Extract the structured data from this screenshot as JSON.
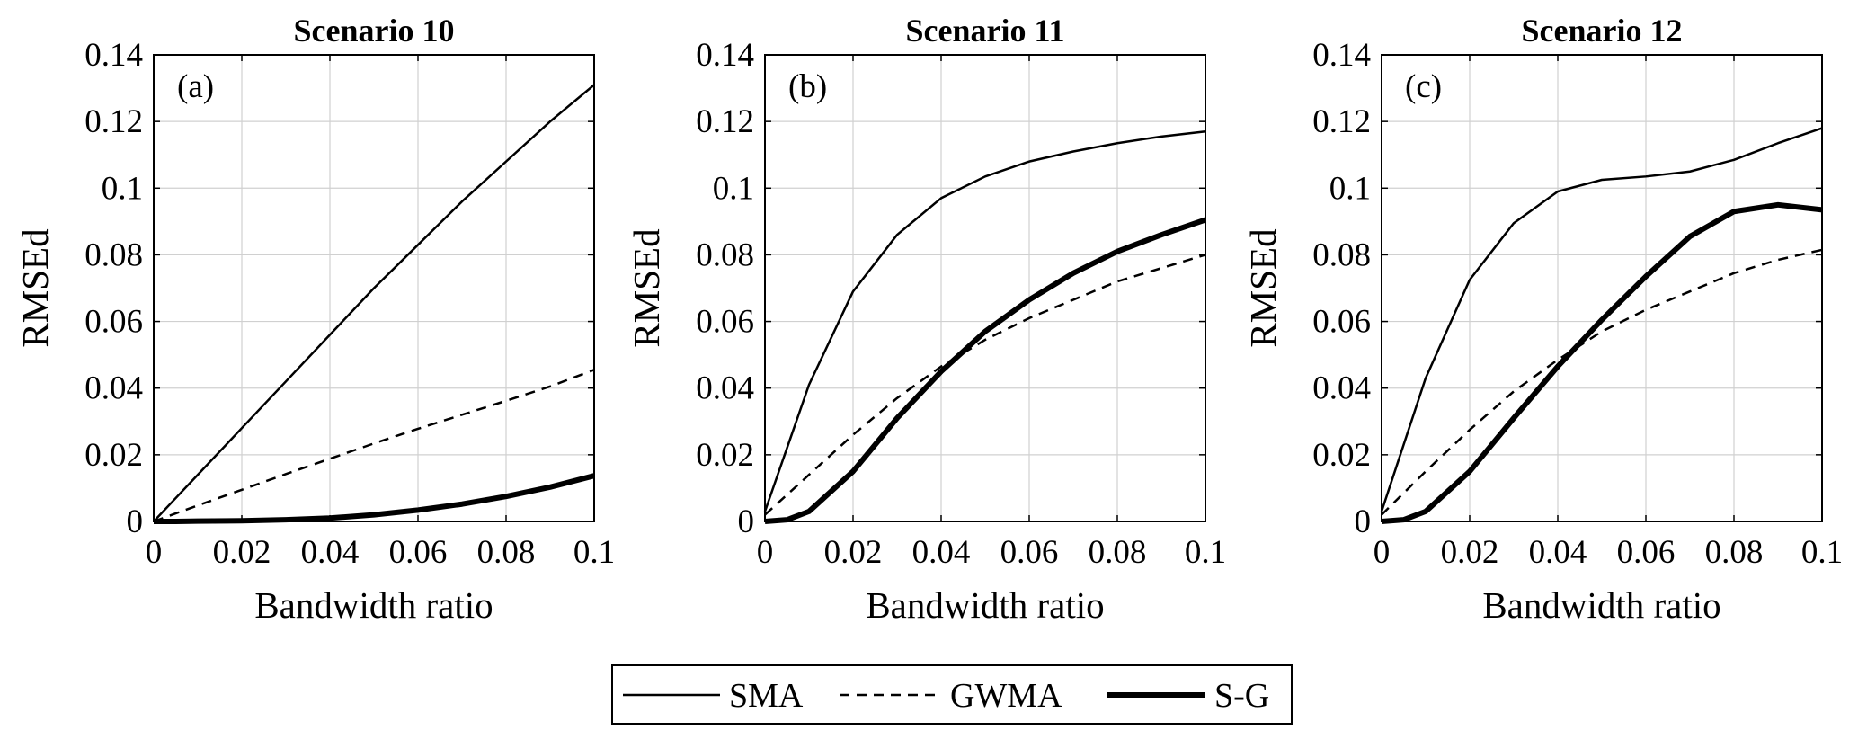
{
  "chart_data": [
    {
      "type": "line",
      "title": "Scenario 10",
      "panel_label": "(a)",
      "xlabel": "Bandwidth ratio",
      "ylabel": "RMSEd",
      "xlim": [
        0,
        0.1
      ],
      "ylim": [
        0,
        0.14
      ],
      "xticks": [
        "0",
        "0.02",
        "0.04",
        "0.06",
        "0.08",
        "0.1"
      ],
      "yticks": [
        "0",
        "0.02",
        "0.04",
        "0.06",
        "0.08",
        "0.1",
        "0.12",
        "0.14"
      ],
      "grid": true,
      "x": [
        0,
        0.005,
        0.01,
        0.02,
        0.03,
        0.04,
        0.05,
        0.06,
        0.07,
        0.08,
        0.09,
        0.1
      ],
      "series": [
        {
          "name": "SMA",
          "values": [
            0,
            0.007,
            0.014,
            0.028,
            0.042,
            0.056,
            0.07,
            0.083,
            0.096,
            0.108,
            0.12,
            0.131
          ]
        },
        {
          "name": "GWMA",
          "values": [
            0,
            0.0024,
            0.0048,
            0.0095,
            0.0142,
            0.0188,
            0.0234,
            0.0278,
            0.032,
            0.0362,
            0.0405,
            0.0455
          ]
        },
        {
          "name": "S-G",
          "values": [
            0,
            0,
            0.0001,
            0.0002,
            0.0005,
            0.001,
            0.002,
            0.0034,
            0.0052,
            0.0075,
            0.0103,
            0.0137
          ]
        }
      ]
    },
    {
      "type": "line",
      "title": "Scenario 11",
      "panel_label": "(b)",
      "xlabel": "Bandwidth ratio",
      "ylabel": "RMSEd",
      "xlim": [
        0,
        0.1
      ],
      "ylim": [
        0,
        0.14
      ],
      "xticks": [
        "0",
        "0.02",
        "0.04",
        "0.06",
        "0.08",
        "0.1"
      ],
      "yticks": [
        "0",
        "0.02",
        "0.04",
        "0.06",
        "0.08",
        "0.1",
        "0.12",
        "0.14"
      ],
      "grid": true,
      "x": [
        0,
        0.005,
        0.01,
        0.02,
        0.03,
        0.04,
        0.05,
        0.06,
        0.07,
        0.08,
        0.09,
        0.1
      ],
      "series": [
        {
          "name": "SMA",
          "values": [
            0.003,
            0.022,
            0.041,
            0.069,
            0.086,
            0.097,
            0.1035,
            0.108,
            0.111,
            0.1135,
            0.1155,
            0.117
          ]
        },
        {
          "name": "GWMA",
          "values": [
            0.002,
            0.008,
            0.014,
            0.026,
            0.037,
            0.0465,
            0.0545,
            0.061,
            0.0665,
            0.072,
            0.076,
            0.08
          ]
        },
        {
          "name": "S-G",
          "values": [
            0,
            0.0005,
            0.003,
            0.015,
            0.031,
            0.045,
            0.057,
            0.0665,
            0.0745,
            0.081,
            0.086,
            0.0905
          ]
        }
      ]
    },
    {
      "type": "line",
      "title": "Scenario 12",
      "panel_label": "(c)",
      "xlabel": "Bandwidth ratio",
      "ylabel": "RMSEd",
      "xlim": [
        0,
        0.1
      ],
      "ylim": [
        0,
        0.14
      ],
      "xticks": [
        "0",
        "0.02",
        "0.04",
        "0.06",
        "0.08",
        "0.1"
      ],
      "yticks": [
        "0",
        "0.02",
        "0.04",
        "0.06",
        "0.08",
        "0.1",
        "0.12",
        "0.14"
      ],
      "grid": true,
      "x": [
        0,
        0.005,
        0.01,
        0.02,
        0.03,
        0.04,
        0.05,
        0.06,
        0.07,
        0.08,
        0.09,
        0.1
      ],
      "series": [
        {
          "name": "SMA",
          "values": [
            0.003,
            0.023,
            0.043,
            0.0725,
            0.0895,
            0.099,
            0.1025,
            0.1035,
            0.105,
            0.1085,
            0.1135,
            0.118
          ]
        },
        {
          "name": "GWMA",
          "values": [
            0.002,
            0.0085,
            0.015,
            0.0275,
            0.039,
            0.0485,
            0.057,
            0.0635,
            0.069,
            0.0745,
            0.0785,
            0.0815
          ]
        },
        {
          "name": "S-G",
          "values": [
            0,
            0.0005,
            0.003,
            0.015,
            0.031,
            0.0465,
            0.0605,
            0.0735,
            0.0855,
            0.093,
            0.095,
            0.0935
          ]
        }
      ]
    }
  ],
  "legend": {
    "placement": "bottom-center",
    "entries": [
      {
        "name": "SMA",
        "style": "thin-solid"
      },
      {
        "name": "GWMA",
        "style": "dashed"
      },
      {
        "name": "S-G",
        "style": "thick-solid"
      }
    ]
  },
  "colors": {
    "line": "#000000",
    "grid": "#d0d0d0",
    "frame": "#000000",
    "background": "#ffffff"
  }
}
